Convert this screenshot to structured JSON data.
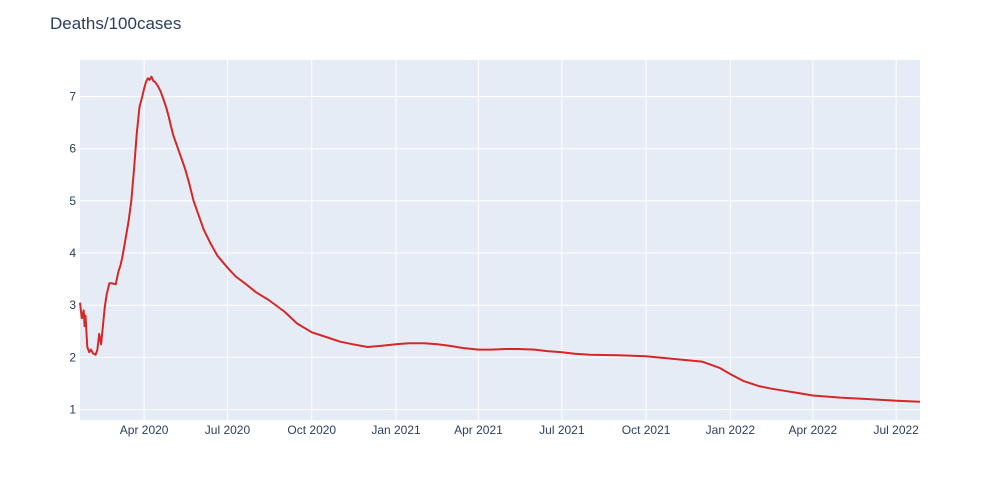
{
  "chart_data": {
    "type": "line",
    "title": "Deaths/100cases",
    "xlabel": "",
    "ylabel": "",
    "x_range": [
      "2020-01-22",
      "2022-07-27"
    ],
    "ylim": [
      0.8,
      7.7
    ],
    "yticks": [
      1,
      2,
      3,
      4,
      5,
      6,
      7
    ],
    "xticks": [
      {
        "date": "2020-04-01",
        "label": "Apr 2020"
      },
      {
        "date": "2020-07-01",
        "label": "Jul 2020"
      },
      {
        "date": "2020-10-01",
        "label": "Oct 2020"
      },
      {
        "date": "2021-01-01",
        "label": "Jan 2021"
      },
      {
        "date": "2021-04-01",
        "label": "Apr 2021"
      },
      {
        "date": "2021-07-01",
        "label": "Jul 2021"
      },
      {
        "date": "2021-10-01",
        "label": "Oct 2021"
      },
      {
        "date": "2022-01-01",
        "label": "Jan 2022"
      },
      {
        "date": "2022-04-01",
        "label": "Apr 2022"
      },
      {
        "date": "2022-07-01",
        "label": "Jul 2022"
      }
    ],
    "grid": true,
    "legend": "none",
    "colors": {
      "line": "#d62728",
      "plot_bg": "#e5ecf6",
      "grid": "#ffffff",
      "text": "#2a3f5f"
    },
    "series": [
      {
        "x": [
          "2020-01-22",
          "2020-01-24",
          "2020-01-26",
          "2020-01-27",
          "2020-01-28",
          "2020-01-30",
          "2020-02-01",
          "2020-02-03",
          "2020-02-05",
          "2020-02-08",
          "2020-02-10",
          "2020-02-12",
          "2020-02-14",
          "2020-02-16",
          "2020-02-18",
          "2020-02-20",
          "2020-02-23",
          "2020-02-26",
          "2020-03-01",
          "2020-03-04",
          "2020-03-06",
          "2020-03-08",
          "2020-03-10",
          "2020-03-12",
          "2020-03-15",
          "2020-03-18",
          "2020-03-21",
          "2020-03-24",
          "2020-03-27",
          "2020-03-30",
          "2020-04-01",
          "2020-04-03",
          "2020-04-05",
          "2020-04-07",
          "2020-04-09",
          "2020-04-11",
          "2020-04-13",
          "2020-04-16",
          "2020-04-19",
          "2020-04-22",
          "2020-04-25",
          "2020-04-28",
          "2020-04-30",
          "2020-05-03",
          "2020-05-06",
          "2020-05-09",
          "2020-05-12",
          "2020-05-16",
          "2020-05-20",
          "2020-05-25",
          "2020-05-30",
          "2020-06-05",
          "2020-06-12",
          "2020-06-20",
          "2020-07-01",
          "2020-07-10",
          "2020-07-20",
          "2020-08-01",
          "2020-08-15",
          "2020-09-01",
          "2020-09-15",
          "2020-10-01",
          "2020-10-15",
          "2020-11-01",
          "2020-11-15",
          "2020-12-01",
          "2020-12-15",
          "2021-01-01",
          "2021-01-15",
          "2021-02-01",
          "2021-02-15",
          "2021-03-01",
          "2021-03-15",
          "2021-04-01",
          "2021-04-15",
          "2021-05-01",
          "2021-05-15",
          "2021-06-01",
          "2021-06-15",
          "2021-07-01",
          "2021-07-15",
          "2021-08-01",
          "2021-09-01",
          "2021-10-01",
          "2021-11-01",
          "2021-12-01",
          "2021-12-20",
          "2022-01-01",
          "2022-01-15",
          "2022-02-01",
          "2022-02-15",
          "2022-03-01",
          "2022-03-15",
          "2022-04-01",
          "2022-05-01",
          "2022-06-01",
          "2022-07-01",
          "2022-07-27"
        ],
        "y": [
          3.05,
          2.75,
          2.9,
          2.6,
          2.8,
          2.2,
          2.1,
          2.15,
          2.08,
          2.05,
          2.15,
          2.45,
          2.25,
          2.6,
          2.95,
          3.2,
          3.42,
          3.42,
          3.4,
          3.65,
          3.75,
          3.9,
          4.1,
          4.3,
          4.6,
          5.0,
          5.6,
          6.3,
          6.8,
          7.0,
          7.15,
          7.28,
          7.35,
          7.32,
          7.38,
          7.3,
          7.28,
          7.2,
          7.1,
          6.95,
          6.8,
          6.6,
          6.45,
          6.25,
          6.1,
          5.95,
          5.8,
          5.6,
          5.35,
          5.0,
          4.75,
          4.45,
          4.2,
          3.95,
          3.72,
          3.55,
          3.42,
          3.25,
          3.1,
          2.88,
          2.65,
          2.48,
          2.4,
          2.3,
          2.25,
          2.2,
          2.22,
          2.25,
          2.27,
          2.27,
          2.25,
          2.22,
          2.18,
          2.15,
          2.15,
          2.16,
          2.16,
          2.15,
          2.12,
          2.1,
          2.07,
          2.05,
          2.04,
          2.02,
          1.97,
          1.92,
          1.8,
          1.68,
          1.55,
          1.45,
          1.4,
          1.36,
          1.32,
          1.27,
          1.23,
          1.2,
          1.17,
          1.15
        ]
      }
    ]
  }
}
